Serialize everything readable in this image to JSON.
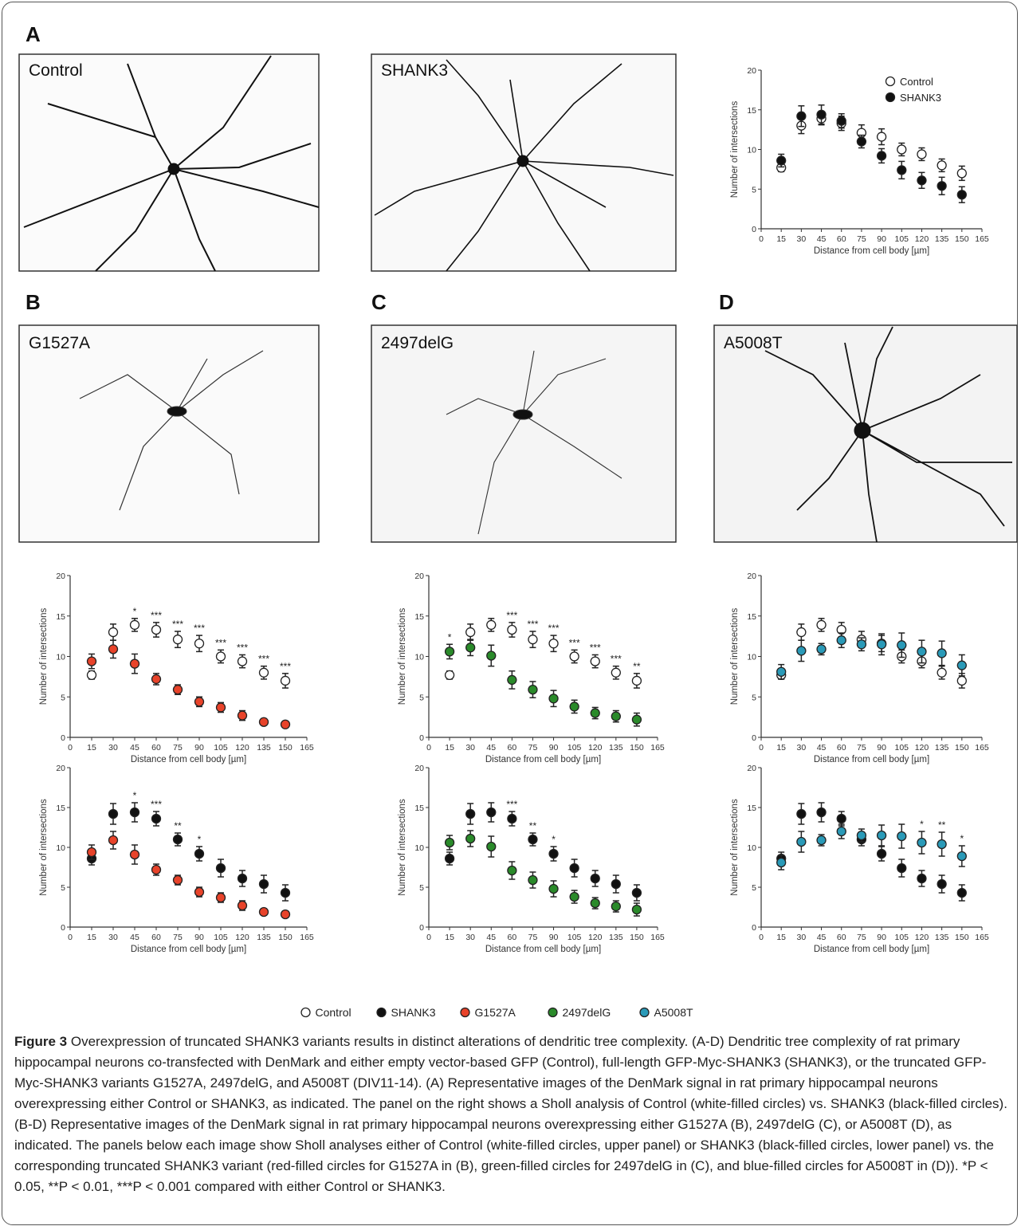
{
  "panels": [
    "A",
    "B",
    "C",
    "D"
  ],
  "images": [
    "Control",
    "SHANK3",
    "G1527A",
    "2497delG",
    "A5008T"
  ],
  "chart_data": [
    {
      "type": "scatter",
      "xlabel": "Distance from cell body [µm]",
      "ylabel": "Number of intersections",
      "x": [
        15,
        30,
        45,
        60,
        75,
        90,
        105,
        120,
        135,
        150
      ],
      "xlim": [
        0,
        165
      ],
      "xticks": [
        0,
        15,
        30,
        45,
        60,
        75,
        90,
        105,
        120,
        135,
        150,
        165
      ],
      "ylim": [
        0,
        20
      ],
      "yticks": [
        0,
        5,
        10,
        15,
        20
      ],
      "legend": "upper right",
      "series": [
        {
          "name": "Control",
          "color": "#ffffff",
          "values": [
            7.7,
            13,
            13.9,
            13.3,
            12.1,
            11.6,
            10,
            9.4,
            8,
            7
          ],
          "errors": [
            0.5,
            1,
            0.8,
            0.9,
            1,
            1,
            0.8,
            0.8,
            0.8,
            0.9
          ]
        },
        {
          "name": "SHANK3",
          "color": "#111111",
          "values": [
            8.6,
            14.2,
            14.4,
            13.6,
            11,
            9.2,
            7.4,
            6.1,
            5.4,
            4.3
          ],
          "errors": [
            0.8,
            1.3,
            1.2,
            0.9,
            0.8,
            0.9,
            1.1,
            1,
            1.1,
            1
          ]
        }
      ]
    },
    {
      "type": "scatter",
      "xlabel": "Distance from cell body [µm]",
      "ylabel": "Number of intersections",
      "x": [
        15,
        30,
        45,
        60,
        75,
        90,
        105,
        120,
        135,
        150
      ],
      "xlim": [
        0,
        165
      ],
      "xticks": [
        0,
        15,
        30,
        45,
        60,
        75,
        90,
        105,
        120,
        135,
        150,
        165
      ],
      "ylim": [
        0,
        20
      ],
      "yticks": [
        0,
        5,
        10,
        15,
        20
      ],
      "series": [
        {
          "name": "Control",
          "color": "#ffffff",
          "values": [
            7.7,
            13,
            13.9,
            13.3,
            12.1,
            11.6,
            10,
            9.4,
            8,
            7
          ],
          "errors": [
            0.5,
            1,
            0.8,
            0.9,
            1,
            1,
            0.8,
            0.8,
            0.8,
            0.9
          ]
        },
        {
          "name": "G1527A",
          "color": "#e8432a",
          "values": [
            9.4,
            10.9,
            9.1,
            7.2,
            5.9,
            4.4,
            3.7,
            2.7,
            1.9,
            1.6
          ],
          "errors": [
            0.9,
            1.1,
            1.2,
            0.7,
            0.6,
            0.6,
            0.6,
            0.6,
            0.4,
            0.4
          ]
        }
      ],
      "annotations": [
        {
          "x": 45,
          "text": "*"
        },
        {
          "x": 60,
          "text": "***"
        },
        {
          "x": 75,
          "text": "***"
        },
        {
          "x": 90,
          "text": "***"
        },
        {
          "x": 105,
          "text": "***"
        },
        {
          "x": 120,
          "text": "***"
        },
        {
          "x": 135,
          "text": "***"
        },
        {
          "x": 150,
          "text": "***"
        }
      ]
    },
    {
      "type": "scatter",
      "xlabel": "Distance from cell body [µm]",
      "ylabel": "Number of intersections",
      "x": [
        15,
        30,
        45,
        60,
        75,
        90,
        105,
        120,
        135,
        150
      ],
      "xlim": [
        0,
        165
      ],
      "xticks": [
        0,
        15,
        30,
        45,
        60,
        75,
        90,
        105,
        120,
        135,
        150,
        165
      ],
      "ylim": [
        0,
        20
      ],
      "yticks": [
        0,
        5,
        10,
        15,
        20
      ],
      "series": [
        {
          "name": "Control",
          "color": "#ffffff",
          "values": [
            7.7,
            13,
            13.9,
            13.3,
            12.1,
            11.6,
            10,
            9.4,
            8,
            7
          ],
          "errors": [
            0.5,
            1,
            0.8,
            0.9,
            1,
            1,
            0.8,
            0.8,
            0.8,
            0.9
          ]
        },
        {
          "name": "2497delG",
          "color": "#2a8a2a",
          "values": [
            10.6,
            11.1,
            10.1,
            7.1,
            5.9,
            4.8,
            3.8,
            3,
            2.6,
            2.2
          ],
          "errors": [
            0.9,
            1,
            1.3,
            1.1,
            1,
            1,
            0.8,
            0.7,
            0.7,
            0.8
          ]
        }
      ],
      "annotations": [
        {
          "x": 15,
          "text": "*"
        },
        {
          "x": 60,
          "text": "***"
        },
        {
          "x": 75,
          "text": "***"
        },
        {
          "x": 90,
          "text": "***"
        },
        {
          "x": 105,
          "text": "***"
        },
        {
          "x": 120,
          "text": "***"
        },
        {
          "x": 135,
          "text": "***"
        },
        {
          "x": 150,
          "text": "**"
        }
      ]
    },
    {
      "type": "scatter",
      "xlabel": "Distance from cell body [µm]",
      "ylabel": "Number of intersections",
      "x": [
        15,
        30,
        45,
        60,
        75,
        90,
        105,
        120,
        135,
        150
      ],
      "xlim": [
        0,
        165
      ],
      "xticks": [
        0,
        15,
        30,
        45,
        60,
        75,
        90,
        105,
        120,
        135,
        150,
        165
      ],
      "ylim": [
        0,
        20
      ],
      "yticks": [
        0,
        5,
        10,
        15,
        20
      ],
      "series": [
        {
          "name": "Control",
          "color": "#ffffff",
          "values": [
            7.7,
            13,
            13.9,
            13.3,
            12.1,
            11.6,
            10,
            9.4,
            8,
            7
          ],
          "errors": [
            0.5,
            1,
            0.8,
            0.9,
            1,
            1,
            0.8,
            0.8,
            0.8,
            0.9
          ]
        },
        {
          "name": "A5008T",
          "color": "#2a9ab8",
          "values": [
            8.1,
            10.7,
            10.9,
            12,
            11.5,
            11.5,
            11.4,
            10.6,
            10.4,
            8.9
          ],
          "errors": [
            0.9,
            1.3,
            0.7,
            0.9,
            0.8,
            1.3,
            1.5,
            1.4,
            1.5,
            1.3
          ]
        }
      ]
    },
    {
      "type": "scatter",
      "xlabel": "Distance from cell body [µm]",
      "ylabel": "Number of intersections",
      "x": [
        15,
        30,
        45,
        60,
        75,
        90,
        105,
        120,
        135,
        150
      ],
      "xlim": [
        0,
        165
      ],
      "xticks": [
        0,
        15,
        30,
        45,
        60,
        75,
        90,
        105,
        120,
        135,
        150,
        165
      ],
      "ylim": [
        0,
        20
      ],
      "yticks": [
        0,
        5,
        10,
        15,
        20
      ],
      "series": [
        {
          "name": "SHANK3",
          "color": "#111111",
          "values": [
            8.6,
            14.2,
            14.4,
            13.6,
            11,
            9.2,
            7.4,
            6.1,
            5.4,
            4.3
          ],
          "errors": [
            0.8,
            1.3,
            1.2,
            0.9,
            0.8,
            0.9,
            1.1,
            1,
            1.1,
            1
          ]
        },
        {
          "name": "G1527A",
          "color": "#e8432a",
          "values": [
            9.4,
            10.9,
            9.1,
            7.2,
            5.9,
            4.4,
            3.7,
            2.7,
            1.9,
            1.6
          ],
          "errors": [
            0.9,
            1.1,
            1.2,
            0.7,
            0.6,
            0.6,
            0.6,
            0.6,
            0.4,
            0.4
          ]
        }
      ],
      "annotations": [
        {
          "x": 45,
          "text": "*"
        },
        {
          "x": 60,
          "text": "***"
        },
        {
          "x": 75,
          "text": "**"
        },
        {
          "x": 90,
          "text": "*"
        }
      ]
    },
    {
      "type": "scatter",
      "xlabel": "Distance from cell body [µm]",
      "ylabel": "Number of intersections",
      "x": [
        15,
        30,
        45,
        60,
        75,
        90,
        105,
        120,
        135,
        150
      ],
      "xlim": [
        0,
        165
      ],
      "xticks": [
        0,
        15,
        30,
        45,
        60,
        75,
        90,
        105,
        120,
        135,
        150,
        165
      ],
      "ylim": [
        0,
        20
      ],
      "yticks": [
        0,
        5,
        10,
        15,
        20
      ],
      "series": [
        {
          "name": "SHANK3",
          "color": "#111111",
          "values": [
            8.6,
            14.2,
            14.4,
            13.6,
            11,
            9.2,
            7.4,
            6.1,
            5.4,
            4.3
          ],
          "errors": [
            0.8,
            1.3,
            1.2,
            0.9,
            0.8,
            0.9,
            1.1,
            1,
            1.1,
            1
          ]
        },
        {
          "name": "2497delG",
          "color": "#2a8a2a",
          "values": [
            10.6,
            11.1,
            10.1,
            7.1,
            5.9,
            4.8,
            3.8,
            3,
            2.6,
            2.2
          ],
          "errors": [
            0.9,
            1,
            1.3,
            1.1,
            1,
            1,
            0.8,
            0.7,
            0.7,
            0.8
          ]
        }
      ],
      "annotations": [
        {
          "x": 60,
          "text": "***"
        },
        {
          "x": 75,
          "text": "**"
        },
        {
          "x": 90,
          "text": "*"
        }
      ]
    },
    {
      "type": "scatter",
      "xlabel": "Distance from cell body [µm]",
      "ylabel": "Number of intersections",
      "x": [
        15,
        30,
        45,
        60,
        75,
        90,
        105,
        120,
        135,
        150
      ],
      "xlim": [
        0,
        165
      ],
      "xticks": [
        0,
        15,
        30,
        45,
        60,
        75,
        90,
        105,
        120,
        135,
        150,
        165
      ],
      "ylim": [
        0,
        20
      ],
      "yticks": [
        0,
        5,
        10,
        15,
        20
      ],
      "series": [
        {
          "name": "SHANK3",
          "color": "#111111",
          "values": [
            8.6,
            14.2,
            14.4,
            13.6,
            11,
            9.2,
            7.4,
            6.1,
            5.4,
            4.3
          ],
          "errors": [
            0.8,
            1.3,
            1.2,
            0.9,
            0.8,
            0.9,
            1.1,
            1,
            1.1,
            1
          ]
        },
        {
          "name": "A5008T",
          "color": "#2a9ab8",
          "values": [
            8.1,
            10.7,
            10.9,
            12,
            11.5,
            11.5,
            11.4,
            10.6,
            10.4,
            8.9
          ],
          "errors": [
            0.9,
            1.3,
            0.7,
            0.9,
            0.8,
            1.3,
            1.5,
            1.4,
            1.5,
            1.3
          ]
        }
      ],
      "annotations": [
        {
          "x": 120,
          "text": "*"
        },
        {
          "x": 135,
          "text": "**"
        },
        {
          "x": 150,
          "text": "*"
        }
      ]
    }
  ],
  "figure_legend": [
    {
      "label": "Control",
      "color": "#ffffff"
    },
    {
      "label": "SHANK3",
      "color": "#111111"
    },
    {
      "label": "G1527A",
      "color": "#e8432a"
    },
    {
      "label": "2497delG",
      "color": "#2a8a2a"
    },
    {
      "label": "A5008T",
      "color": "#2a9ab8"
    }
  ],
  "caption": {
    "label": "Figure 3",
    "text": "Overexpression of truncated SHANK3 variants results in distinct alterations of dendritic tree complexity. (A-D) Dendritic tree complexity of rat primary hippocampal neurons co-transfected with DenMark and either empty vector-based GFP (Control), full-length GFP-Myc-SHANK3 (SHANK3), or the truncated GFP-Myc-SHANK3 variants G1527A, 2497delG, and A5008T (DIV11-14). (A) Representative images of the DenMark signal in rat primary hippocampal neurons overexpressing either Control or SHANK3, as indicated. The panel on the right shows a Sholl analysis of Control (white-filled circles) vs. SHANK3 (black-filled circles). (B-D) Representative images of the DenMark signal in rat primary hippocampal neurons overexpressing either G1527A (B), 2497delG (C), or A5008T (D), as indicated. The panels below each image show Sholl analyses either of Control (white-filled circles, upper panel) or SHANK3 (black-filled circles, lower panel) vs. the corresponding truncated SHANK3 variant (red-filled circles for G1527A in (B), green-filled circles for 2497delG in (C), and blue-filled circles for A5008T in (D)). *P < 0.05, **P < 0.01, ***P < 0.001 compared with either Control or SHANK3."
  }
}
